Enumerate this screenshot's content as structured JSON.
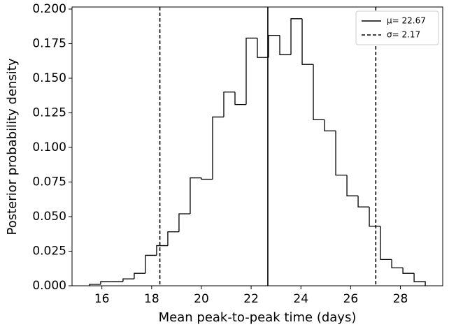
{
  "chart_data": {
    "type": "histogram",
    "xlabel": "Mean peak-to-peak time (days)",
    "ylabel": "Posterior probability density",
    "bins": [
      15.5,
      15.95,
      16.4,
      16.85,
      17.3,
      17.75,
      18.2,
      18.65,
      19.1,
      19.55,
      20.0,
      20.45,
      20.9,
      21.35,
      21.8,
      22.25,
      22.7,
      23.15,
      23.6,
      24.05,
      24.5,
      24.95,
      25.4,
      25.85,
      26.3,
      26.75,
      27.2,
      27.65,
      28.1,
      28.55,
      29.0
    ],
    "values": [
      0.001,
      0.003,
      0.003,
      0.005,
      0.009,
      0.022,
      0.029,
      0.039,
      0.052,
      0.078,
      0.077,
      0.122,
      0.14,
      0.131,
      0.179,
      0.165,
      0.181,
      0.167,
      0.193,
      0.16,
      0.12,
      0.112,
      0.08,
      0.065,
      0.057,
      0.043,
      0.019,
      0.013,
      0.009,
      0.003
    ],
    "color": "#000000",
    "xlim": [
      14.8,
      29.7
    ],
    "ylim": [
      0,
      0.2015
    ],
    "xticks": [
      16,
      18,
      20,
      22,
      24,
      26,
      28
    ],
    "yticks": [
      {
        "value": 0,
        "label": "0.000"
      },
      {
        "value": 0.025,
        "label": "0.025"
      },
      {
        "value": 0.05,
        "label": "0.050"
      },
      {
        "value": 0.075,
        "label": "0.075"
      },
      {
        "value": 0.1,
        "label": "0.100"
      },
      {
        "value": 0.125,
        "label": "0.125"
      },
      {
        "value": 0.15,
        "label": "0.150"
      },
      {
        "value": 0.175,
        "label": "0.175"
      },
      {
        "value": 0.2,
        "label": "0.200"
      }
    ],
    "vlines": [
      {
        "name": "μ= 22.67",
        "x": [
          22.67
        ],
        "style": "solid"
      },
      {
        "name": "σ= 2.17",
        "x": [
          18.33,
          27.01
        ],
        "style": "dashed"
      }
    ],
    "legend": "upper right"
  }
}
